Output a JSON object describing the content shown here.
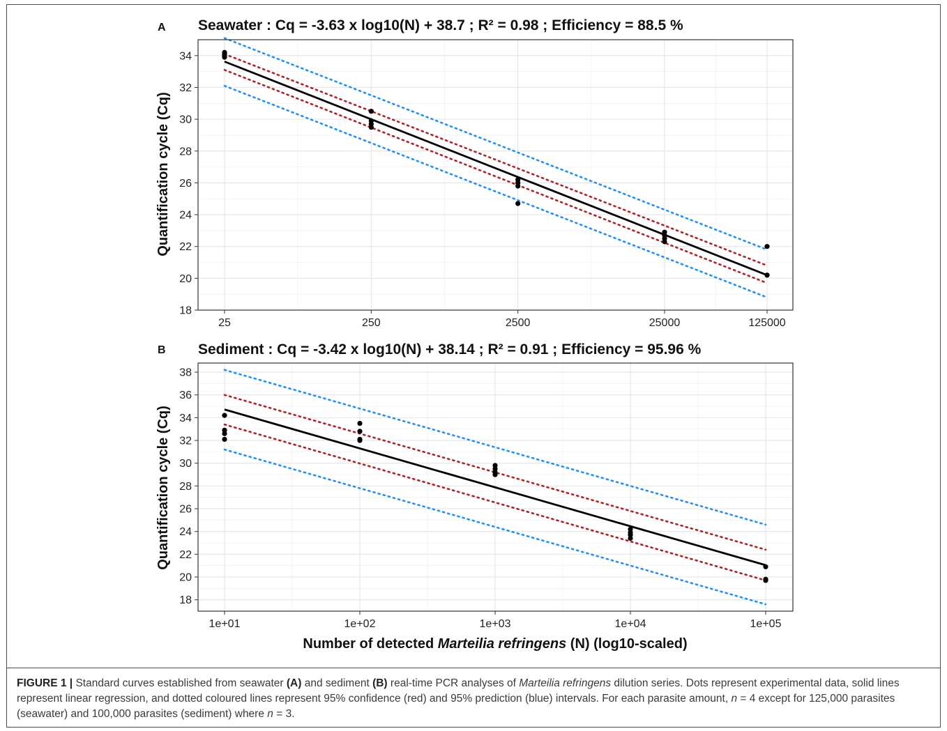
{
  "chart_data": [
    {
      "type": "scatter",
      "panel_label": "A",
      "title": "Seawater : Cq = -3.63 x log10(N) + 38.7 ; R² = 0.98 ; Efficiency = 88.5 %",
      "xlabel": "",
      "ylabel": "Quantification cycle (Cq)",
      "x_scale": "log10",
      "x_ticks": [
        25,
        250,
        2500,
        25000,
        125000
      ],
      "x_tick_labels": [
        "25",
        "250",
        "2500",
        "25000",
        "125000"
      ],
      "y_ticks": [
        18,
        20,
        22,
        24,
        26,
        28,
        30,
        32,
        34
      ],
      "xlim": [
        25,
        125000
      ],
      "ylim": [
        18,
        35
      ],
      "grid": true,
      "points": [
        {
          "x": 25,
          "y": 34.2
        },
        {
          "x": 25,
          "y": 34.1
        },
        {
          "x": 25,
          "y": 34.0
        },
        {
          "x": 25,
          "y": 33.9
        },
        {
          "x": 250,
          "y": 30.5
        },
        {
          "x": 250,
          "y": 29.9
        },
        {
          "x": 250,
          "y": 29.7
        },
        {
          "x": 250,
          "y": 29.5
        },
        {
          "x": 2500,
          "y": 26.2
        },
        {
          "x": 2500,
          "y": 26.0
        },
        {
          "x": 2500,
          "y": 25.8
        },
        {
          "x": 2500,
          "y": 24.7
        },
        {
          "x": 25000,
          "y": 22.9
        },
        {
          "x": 25000,
          "y": 22.7
        },
        {
          "x": 25000,
          "y": 22.5
        },
        {
          "x": 25000,
          "y": 22.3
        },
        {
          "x": 125000,
          "y": 22.0
        },
        {
          "x": 125000,
          "y": 20.2
        },
        {
          "x": 125000,
          "y": 20.2
        }
      ],
      "regression": {
        "slope": -3.63,
        "intercept": 38.7
      },
      "confidence_band": {
        "lower": [
          [
            25,
            33.1
          ],
          [
            125000,
            19.7
          ]
        ],
        "upper": [
          [
            25,
            34.1
          ],
          [
            125000,
            20.8
          ]
        ]
      },
      "prediction_band": {
        "lower": [
          [
            25,
            32.1
          ],
          [
            125000,
            18.8
          ]
        ],
        "upper": [
          [
            25,
            35.1
          ],
          [
            125000,
            21.8
          ]
        ]
      },
      "colors": {
        "points": "#000000",
        "regression": "#000000",
        "confidence": "#b22222",
        "prediction": "#1e90ff"
      }
    },
    {
      "type": "scatter",
      "panel_label": "B",
      "title": "Sediment : Cq = -3.42 x log10(N) + 38.14 ; R² = 0.91 ; Efficiency = 95.96 %",
      "xlabel_parts": [
        "Number of detected ",
        "Marteilia refringens",
        " (N) (log10-scaled)"
      ],
      "ylabel": "Quantification cycle (Cq)",
      "x_scale": "log10",
      "x_ticks": [
        10,
        100,
        1000,
        10000,
        100000
      ],
      "x_tick_labels": [
        "1e+01",
        "1e+02",
        "1e+03",
        "1e+04",
        "1e+05"
      ],
      "y_ticks": [
        18,
        20,
        22,
        24,
        26,
        28,
        30,
        32,
        34,
        36,
        38
      ],
      "xlim": [
        10,
        100000
      ],
      "ylim": [
        17,
        38.8
      ],
      "grid": true,
      "points": [
        {
          "x": 10,
          "y": 34.2
        },
        {
          "x": 10,
          "y": 32.9
        },
        {
          "x": 10,
          "y": 32.6
        },
        {
          "x": 10,
          "y": 32.1
        },
        {
          "x": 100,
          "y": 33.5
        },
        {
          "x": 100,
          "y": 32.8
        },
        {
          "x": 100,
          "y": 32.1
        },
        {
          "x": 100,
          "y": 32.0
        },
        {
          "x": 1000,
          "y": 29.8
        },
        {
          "x": 1000,
          "y": 29.5
        },
        {
          "x": 1000,
          "y": 29.2
        },
        {
          "x": 1000,
          "y": 29.0
        },
        {
          "x": 10000,
          "y": 24.2
        },
        {
          "x": 10000,
          "y": 23.9
        },
        {
          "x": 10000,
          "y": 23.7
        },
        {
          "x": 10000,
          "y": 23.4
        },
        {
          "x": 100000,
          "y": 20.9
        },
        {
          "x": 100000,
          "y": 19.8
        },
        {
          "x": 100000,
          "y": 19.7
        }
      ],
      "regression": {
        "slope": -3.42,
        "intercept": 38.14
      },
      "confidence_band": {
        "lower": [
          [
            10,
            33.4
          ],
          [
            100000,
            19.7
          ]
        ],
        "upper": [
          [
            10,
            36.0
          ],
          [
            100000,
            22.4
          ]
        ]
      },
      "prediction_band": {
        "lower": [
          [
            10,
            31.2
          ],
          [
            100000,
            17.6
          ]
        ],
        "upper": [
          [
            10,
            38.2
          ],
          [
            100000,
            24.6
          ]
        ]
      },
      "colors": {
        "points": "#000000",
        "regression": "#000000",
        "confidence": "#b22222",
        "prediction": "#1e90ff"
      }
    }
  ],
  "caption": {
    "label": "FIGURE 1 |",
    "t1": " Standard curves established from seawater ",
    "a": "(A)",
    "t2": " and sediment ",
    "b": "(B)",
    "t3": " real-time PCR analyses of ",
    "species": "Marteilia refringens",
    "t4": " dilution series. Dots represent experimental data, solid lines represent linear regression, and dotted coloured lines represent 95% confidence (red) and 95% prediction (blue) intervals. For each parasite amount, ",
    "n1": "n",
    "t5": " = 4 except for 125,000 parasites (seawater) and 100,000 parasites (sediment) where ",
    "n2": "n",
    "t6": " = 3."
  }
}
